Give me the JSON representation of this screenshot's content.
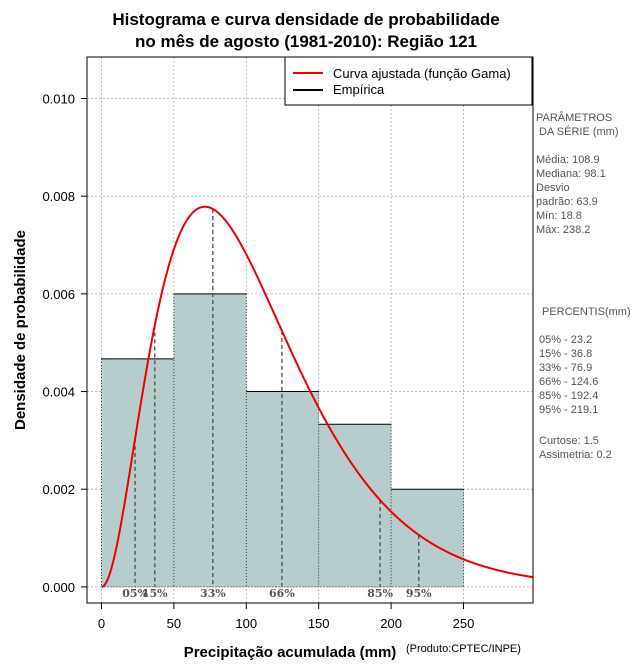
{
  "chart_data": {
    "type": "histogram",
    "title_lines": [
      "Histograma e curva densidade de probabilidade",
      "no mês de agosto (1981-2010): Região 121"
    ],
    "xlabel": "Precipitação acumulada (mm)",
    "ylabel": "Densidade de probabilidade",
    "credit": "(Produto:CPTEC/INPE)",
    "xlim": [
      -10,
      298
    ],
    "ylim": [
      -0.00033,
      0.01085
    ],
    "x_ticks": [
      0,
      50,
      100,
      150,
      200,
      250
    ],
    "x_tick_labels": [
      "0",
      "50",
      "100",
      "150",
      "200",
      "250"
    ],
    "y_ticks": [
      0,
      0.002,
      0.004,
      0.006,
      0.008,
      0.01
    ],
    "y_tick_labels": [
      "0.000",
      "0.002",
      "0.004",
      "0.006",
      "0.008",
      "0.010"
    ],
    "bins": [
      {
        "x0": 0,
        "x1": 50,
        "density": 0.00467
      },
      {
        "x0": 50,
        "x1": 100,
        "density": 0.006
      },
      {
        "x0": 100,
        "x1": 150,
        "density": 0.004
      },
      {
        "x0": 150,
        "x1": 200,
        "density": 0.00333
      },
      {
        "x0": 200,
        "x1": 250,
        "density": 0.002
      }
    ],
    "gamma_fit": {
      "shape": 3.1,
      "scale": 34.0,
      "x_max": 298
    },
    "percentile_lines": [
      {
        "label": "05%",
        "value": 23.2
      },
      {
        "label": "15%",
        "value": 36.8
      },
      {
        "label": "33%",
        "value": 76.9
      },
      {
        "label": "66%",
        "value": 124.6
      },
      {
        "label": "85%",
        "value": 192.4
      },
      {
        "label": "95%",
        "value": 219.1
      }
    ],
    "legend": {
      "position": "top-right",
      "entries": [
        {
          "label": "Curva ajustada (função Gama)",
          "color": "#ee0000"
        },
        {
          "label": "Empírica",
          "color": "#000000"
        }
      ]
    },
    "colors": {
      "bar_fill": "#b7cdcd",
      "curve": "#ee0000",
      "grid": "#aaaaaa",
      "percentile": "#555555"
    }
  },
  "side_panel": {
    "params_lines": [
      "PARÂMETROS",
      " DA SÉRIE (mm)"
    ],
    "stats_lines": [
      "Média:  108.9",
      "Mediana:  98.1",
      "Desvio",
      "padrão:  63.9",
      "Mín:  18.8",
      "Máx:  238.2"
    ],
    "percentis_title": "PERCENTIS(mm)",
    "percentis_lines": [
      "05% -  23.2",
      "15% -  36.8",
      "33% -  76.9",
      "66% -  124.6",
      "85% -  192.4",
      "95% -  219.1"
    ],
    "shape_lines": [
      "Curtose:  1.5",
      "Assimetria:  0.2"
    ]
  }
}
